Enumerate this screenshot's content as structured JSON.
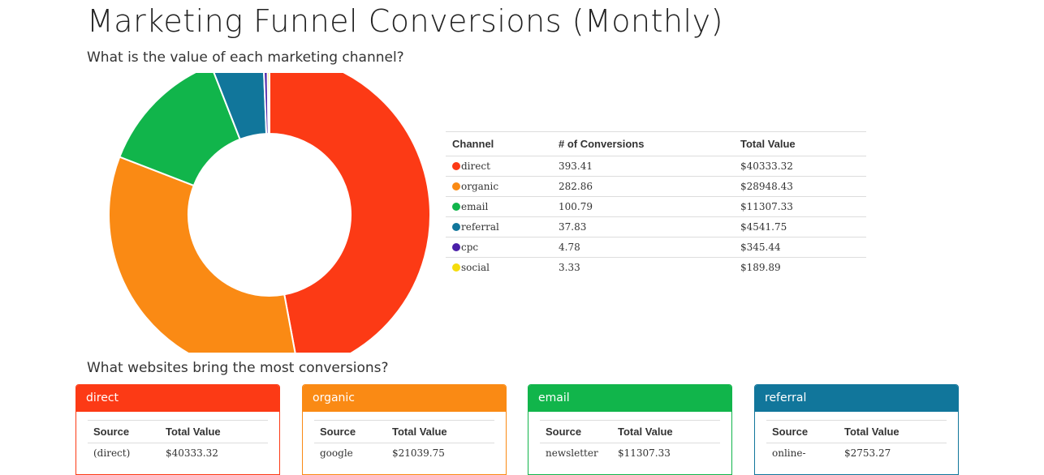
{
  "page": {
    "title": "Marketing Funnel Conversions (Monthly)",
    "subtitle": "What is the value of each marketing channel?",
    "subtitle2": "What websites bring the most conversions?"
  },
  "channel_table": {
    "headers": [
      "Channel",
      "# of Conversions",
      "Total Value"
    ],
    "rows": [
      {
        "channel": "direct",
        "conversions": "393.41",
        "value": "$40333.32",
        "color": "#fc3a15"
      },
      {
        "channel": "organic",
        "conversions": "282.86",
        "value": "$28948.43",
        "color": "#fa8a14"
      },
      {
        "channel": "email",
        "conversions": "100.79",
        "value": "$11307.33",
        "color": "#11b54b"
      },
      {
        "channel": "referral",
        "conversions": "37.83",
        "value": "$4541.75",
        "color": "#11769b"
      },
      {
        "channel": "cpc",
        "conversions": "4.78",
        "value": "$345.44",
        "color": "#4a1fa8"
      },
      {
        "channel": "social",
        "conversions": "3.33",
        "value": "$189.89",
        "color": "#f5dc0c"
      }
    ]
  },
  "chart_data": {
    "type": "pie",
    "donut": true,
    "categories": [
      "direct",
      "organic",
      "email",
      "referral",
      "cpc",
      "social"
    ],
    "values": [
      40333.32,
      28948.43,
      11307.33,
      4541.75,
      345.44,
      189.89
    ],
    "colors": [
      "#fc3a15",
      "#fa8a14",
      "#11b54b",
      "#11769b",
      "#4a1fa8",
      "#f5dc0c"
    ]
  },
  "panels": [
    {
      "title": "direct",
      "color": "#fc3a15",
      "headers": [
        "Source",
        "Total Value"
      ],
      "rows": [
        {
          "source": "(direct)",
          "value": "$40333.32"
        }
      ]
    },
    {
      "title": "organic",
      "color": "#fa8a14",
      "headers": [
        "Source",
        "Total Value"
      ],
      "rows": [
        {
          "source": "google",
          "value": "$21039.75"
        }
      ]
    },
    {
      "title": "email",
      "color": "#11b54b",
      "headers": [
        "Source",
        "Total Value"
      ],
      "rows": [
        {
          "source": "newsletter",
          "value": "$11307.33"
        }
      ]
    },
    {
      "title": "referral",
      "color": "#11769b",
      "headers": [
        "Source",
        "Total Value"
      ],
      "rows": [
        {
          "source": "online-",
          "value": "$2753.27"
        }
      ]
    }
  ]
}
